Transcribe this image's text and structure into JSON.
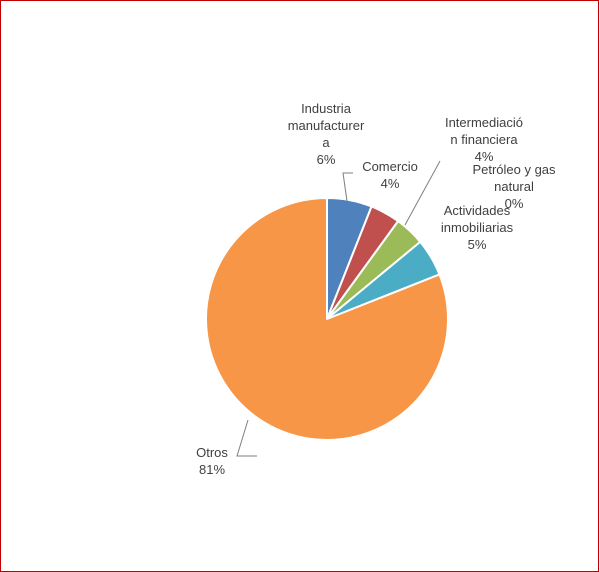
{
  "frame_color": "#c00000",
  "chart_data": {
    "type": "pie",
    "title": "",
    "slices": [
      {
        "name": "Industria manufacturera",
        "label_lines": [
          "Industria",
          "manufacturer",
          "a",
          "6%"
        ],
        "value": 6,
        "percent_label": "6%",
        "color": "#4f81bd"
      },
      {
        "name": "Comercio",
        "label_lines": [
          "Comercio",
          "4%"
        ],
        "value": 4,
        "percent_label": "4%",
        "color": "#c0504d"
      },
      {
        "name": "Intermediación financiera",
        "label_lines": [
          "Intermediació",
          "n financiera",
          "4%"
        ],
        "value": 4,
        "percent_label": "4%",
        "color": "#9bbb59"
      },
      {
        "name": "Petróleo y gas natural",
        "label_lines": [
          "Petróleo y gas",
          "natural",
          "0%"
        ],
        "value": 0,
        "percent_label": "0%",
        "color": "#8064a2"
      },
      {
        "name": "Actividades inmobiliarias",
        "label_lines": [
          "Actividades",
          "inmobiliarias",
          "5%"
        ],
        "value": 5,
        "percent_label": "5%",
        "color": "#4bacc6"
      },
      {
        "name": "Otros",
        "label_lines": [
          "Otros",
          "81%"
        ],
        "value": 81,
        "percent_label": "81%",
        "color": "#f79646"
      }
    ]
  }
}
